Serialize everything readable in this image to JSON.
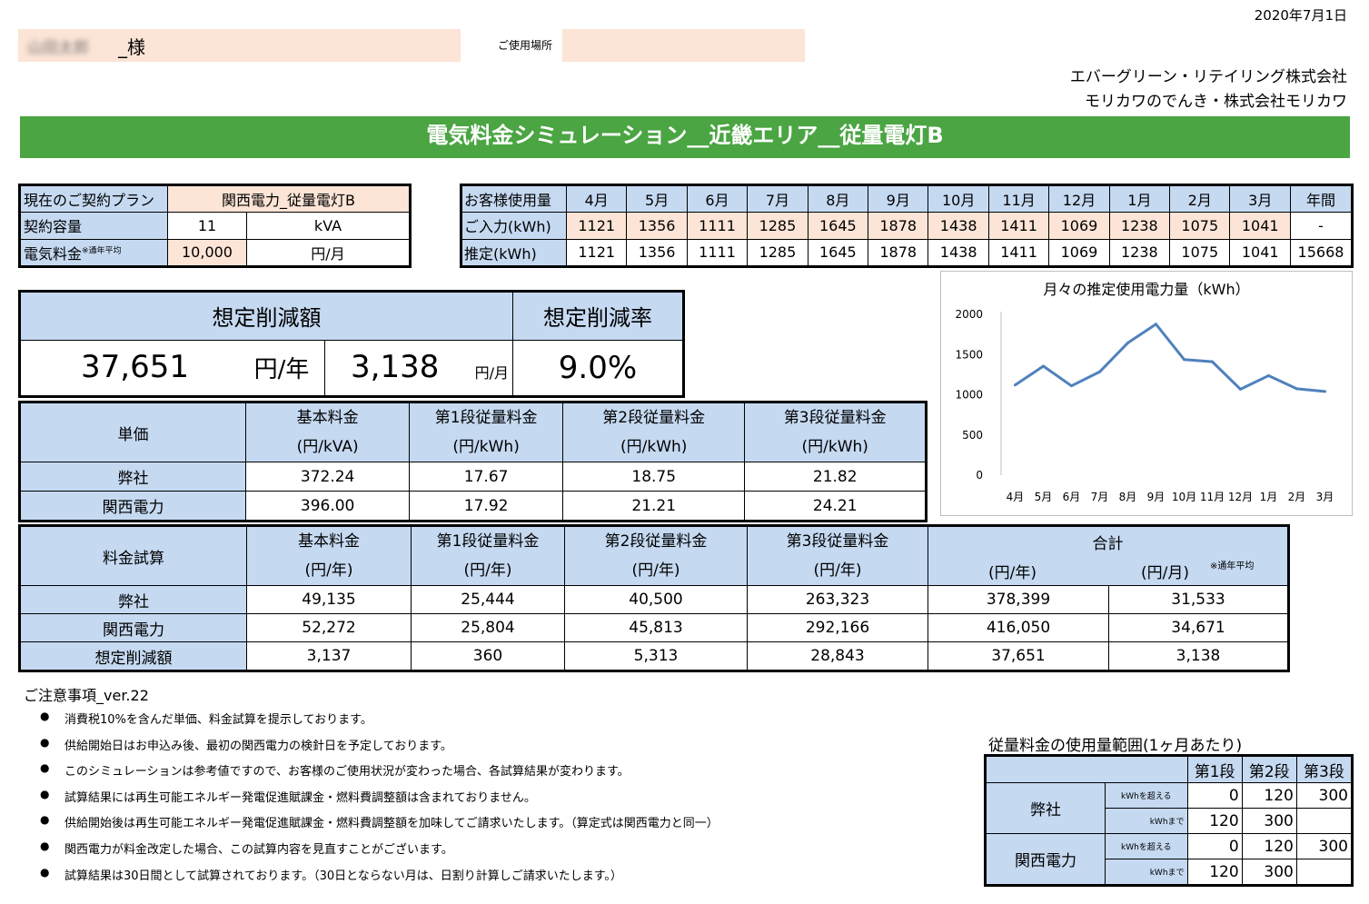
{
  "date": "2020年7月1日",
  "customer": {
    "name_blurred": "山田太郎",
    "suffix": "_様",
    "location_label": "ご使用場所"
  },
  "company": {
    "line1": "エバーグリーン・リテイリング株式会社",
    "line2": "モリカワのでんき・株式会社モリカワ"
  },
  "title": "電気料金シミュレーション__近畿エリア__従量電灯B",
  "contract": {
    "plan_label": "現在のご契約プラン",
    "plan_value": "関西電力_従量電灯B",
    "capacity_label": "契約容量",
    "capacity_value": "11",
    "capacity_unit": "kVA",
    "fee_label": "電気料金",
    "fee_note": "※通年平均",
    "fee_value": "10,000",
    "fee_unit": "円/月"
  },
  "usage": {
    "header_label": "お客様使用量",
    "months": [
      "4月",
      "5月",
      "6月",
      "7月",
      "8月",
      "9月",
      "10月",
      "11月",
      "12月",
      "1月",
      "2月",
      "3月"
    ],
    "annual_label": "年間",
    "input_label": "ご入力(kWh)",
    "input": [
      "1121",
      "1356",
      "1111",
      "1285",
      "1645",
      "1878",
      "1438",
      "1411",
      "1069",
      "1238",
      "1075",
      "1041"
    ],
    "input_total": "-",
    "estimate_label": "推定(kWh)",
    "estimate": [
      "1121",
      "1356",
      "1111",
      "1285",
      "1645",
      "1878",
      "1438",
      "1411",
      "1069",
      "1238",
      "1075",
      "1041"
    ],
    "estimate_total": "15668"
  },
  "savings": {
    "amount_label": "想定削減額",
    "rate_label": "想定削減率",
    "yearly": "37,651",
    "yearly_unit": "円/年",
    "monthly": "3,138",
    "monthly_unit": "円/月",
    "rate": "9.0%"
  },
  "unit_price": {
    "row_label": "単価",
    "headers": [
      {
        "name": "基本料金",
        "unit": "(円/kVA)"
      },
      {
        "name": "第1段従量料金",
        "unit": "(円/kWh)"
      },
      {
        "name": "第2段従量料金",
        "unit": "(円/kWh)"
      },
      {
        "name": "第3段従量料金",
        "unit": "(円/kWh)"
      }
    ],
    "rows": [
      {
        "label": "弊社",
        "values": [
          "372.24",
          "17.67",
          "18.75",
          "21.82"
        ]
      },
      {
        "label": "関西電力",
        "values": [
          "396.00",
          "17.92",
          "21.21",
          "24.21"
        ]
      }
    ]
  },
  "calc": {
    "row_label": "料金試算",
    "headers": [
      {
        "name": "基本料金",
        "unit": "(円/年)"
      },
      {
        "name": "第1段従量料金",
        "unit": "(円/年)"
      },
      {
        "name": "第2段従量料金",
        "unit": "(円/年)"
      },
      {
        "name": "第3段従量料金",
        "unit": "(円/年)"
      }
    ],
    "total_label": "合計",
    "total_unit_year": "(円/年)",
    "total_unit_month": "(円/月)",
    "total_note": "※通年平均",
    "rows": [
      {
        "label": "弊社",
        "values": [
          "49,135",
          "25,444",
          "40,500",
          "263,323",
          "378,399",
          "31,533"
        ]
      },
      {
        "label": "関西電力",
        "values": [
          "52,272",
          "25,804",
          "45,813",
          "292,166",
          "416,050",
          "34,671"
        ]
      },
      {
        "label": "想定削減額",
        "values": [
          "3,137",
          "360",
          "5,313",
          "28,843",
          "37,651",
          "3,138"
        ]
      }
    ]
  },
  "notes": {
    "title": "ご注意事項_ver.22",
    "items": [
      "消費税10%を含んだ単価、料金試算を提示しております。",
      "供給開始日はお申込み後、最初の関西電力の検針日を予定しております。",
      "このシミュレーションは参考値ですので、お客様のご使用状況が変わった場合、各試算結果が変わります。",
      "試算結果には再生可能エネルギー発電促進賦課金・燃料費調整額は含まれておりません。",
      "供給開始後は再生可能エネルギー発電促進賦課金・燃料費調整額を加味してご請求いたします。（算定式は関西電力と同一）",
      "関西電力が料金改定した場合、この試算内容を見直すことがございます。",
      "試算結果は30日間として試算されております。（30日とならない月は、日割り計算しご請求いたします。）"
    ]
  },
  "range": {
    "title": "従量料金の使用量範囲(1ヶ月あたり)",
    "headers": [
      "第1段",
      "第2段",
      "第3段"
    ],
    "over_label": "kWhを超える",
    "upto_label": "kWhまで",
    "groups": [
      {
        "label": "弊社",
        "over": [
          "0",
          "120",
          "300"
        ],
        "upto": [
          "120",
          "300",
          ""
        ]
      },
      {
        "label": "関西電力",
        "over": [
          "0",
          "120",
          "300"
        ],
        "upto": [
          "120",
          "300",
          ""
        ]
      }
    ]
  },
  "chart_data": {
    "type": "line",
    "title": "月々の推定使用電力量（kWh）",
    "categories": [
      "4月",
      "5月",
      "6月",
      "7月",
      "8月",
      "9月",
      "10月",
      "11月",
      "12月",
      "1月",
      "2月",
      "3月"
    ],
    "values": [
      1121,
      1356,
      1111,
      1285,
      1645,
      1878,
      1438,
      1411,
      1069,
      1238,
      1075,
      1041
    ],
    "ylim": [
      0,
      2000
    ],
    "yticks": [
      0,
      500,
      1000,
      1500,
      2000
    ],
    "color": "#4f81bd",
    "grid": false,
    "legend": "none"
  }
}
